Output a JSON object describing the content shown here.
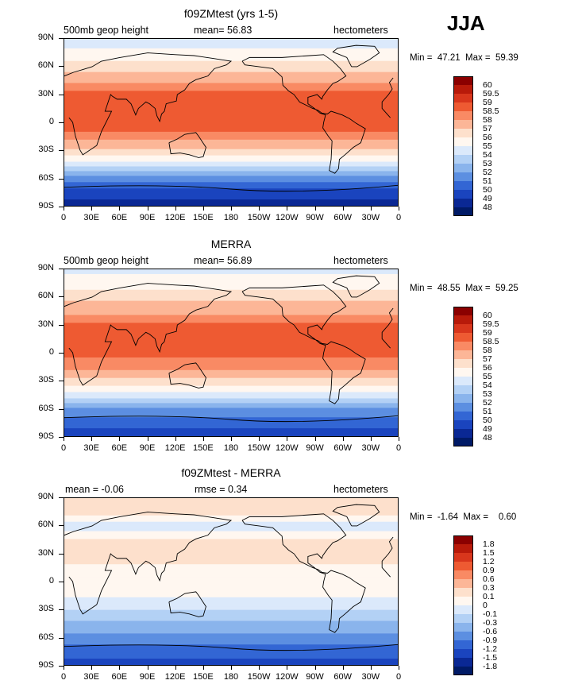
{
  "season": "JJA",
  "chart_data": [
    {
      "type": "heatmap",
      "title": "f09ZMtest (yrs 1-5)",
      "field_label": "500mb geop height",
      "stat_text": "mean=  56.83",
      "units": "hectometers",
      "min_text": "Min =  47.21",
      "max_text": "Max =  59.39",
      "min": 47.21,
      "max": 59.39,
      "mean": 56.83,
      "x_ticks": [
        "0",
        "30E",
        "60E",
        "90E",
        "120E",
        "150E",
        "180",
        "150W",
        "120W",
        "90W",
        "60W",
        "30W",
        "0"
      ],
      "y_ticks": [
        "90N",
        "60N",
        "30N",
        "0",
        "30S",
        "60S",
        "90S"
      ],
      "colorbar_levels": [
        "60",
        "59.5",
        "59",
        "58.5",
        "58",
        "57",
        "56",
        "55",
        "54",
        "53",
        "52",
        "51",
        "50",
        "49",
        "48"
      ],
      "colors": [
        "#8b0000",
        "#b81a0a",
        "#d8361c",
        "#ee5a32",
        "#f98a64",
        "#fcb697",
        "#fde0cc",
        "#fff7f0",
        "#dbe9fb",
        "#b3d1f5",
        "#8ab4ec",
        "#5c8fe1",
        "#3366d4",
        "#1a44be",
        "#0a2894",
        "#001a66"
      ],
      "profile": [
        {
          "lat": 90,
          "v": 54.5
        },
        {
          "lat": 75,
          "v": 55.2
        },
        {
          "lat": 60,
          "v": 56.6
        },
        {
          "lat": 45,
          "v": 57.8
        },
        {
          "lat": 30,
          "v": 58.8
        },
        {
          "lat": 15,
          "v": 58.8
        },
        {
          "lat": 0,
          "v": 58.7
        },
        {
          "lat": -15,
          "v": 58.4
        },
        {
          "lat": -30,
          "v": 56.9
        },
        {
          "lat": -45,
          "v": 54.5
        },
        {
          "lat": -60,
          "v": 51.5
        },
        {
          "lat": -75,
          "v": 49.5
        },
        {
          "lat": -90,
          "v": 48.5
        }
      ]
    },
    {
      "type": "heatmap",
      "title": "MERRA",
      "field_label": "500mb geop height",
      "stat_text": "mean=  56.89",
      "units": "hectometers",
      "min_text": "Min =  48.55",
      "max_text": "Max =  59.25",
      "min": 48.55,
      "max": 59.25,
      "mean": 56.89,
      "x_ticks": [
        "0",
        "30E",
        "60E",
        "90E",
        "120E",
        "150E",
        "180",
        "150W",
        "120W",
        "90W",
        "60W",
        "30W",
        "0"
      ],
      "y_ticks": [
        "90N",
        "60N",
        "30N",
        "0",
        "30S",
        "60S",
        "90S"
      ],
      "colorbar_levels": [
        "60",
        "59.5",
        "59",
        "58.5",
        "58",
        "57",
        "56",
        "55",
        "54",
        "53",
        "52",
        "51",
        "50",
        "49",
        "48"
      ],
      "colors": [
        "#8b0000",
        "#b81a0a",
        "#d8361c",
        "#ee5a32",
        "#f98a64",
        "#fcb697",
        "#fde0cc",
        "#fff7f0",
        "#dbe9fb",
        "#b3d1f5",
        "#8ab4ec",
        "#5c8fe1",
        "#3366d4",
        "#1a44be",
        "#0a2894",
        "#001a66"
      ],
      "profile": [
        {
          "lat": 90,
          "v": 54.8
        },
        {
          "lat": 75,
          "v": 55.4
        },
        {
          "lat": 60,
          "v": 56.7
        },
        {
          "lat": 45,
          "v": 57.7
        },
        {
          "lat": 30,
          "v": 58.6
        },
        {
          "lat": 15,
          "v": 58.7
        },
        {
          "lat": 0,
          "v": 58.6
        },
        {
          "lat": -15,
          "v": 58.3
        },
        {
          "lat": -30,
          "v": 56.8
        },
        {
          "lat": -45,
          "v": 54.6
        },
        {
          "lat": -60,
          "v": 52.0
        },
        {
          "lat": -75,
          "v": 50.3
        },
        {
          "lat": -90,
          "v": 49.6
        }
      ]
    },
    {
      "type": "heatmap",
      "title": "f09ZMtest - MERRA",
      "stat_text": "mean =   -0.06",
      "rmse_text": "rmse =    0.34",
      "units": "hectometers",
      "min_text": "Min =  -1.64",
      "max_text": "Max =    0.60",
      "min": -1.64,
      "max": 0.6,
      "mean": -0.06,
      "rmse": 0.34,
      "x_ticks": [
        "0",
        "30E",
        "60E",
        "90E",
        "120E",
        "150E",
        "180",
        "150W",
        "120W",
        "90W",
        "60W",
        "30W",
        "0"
      ],
      "y_ticks": [
        "90N",
        "60N",
        "30N",
        "0",
        "30S",
        "60S",
        "90S"
      ],
      "colorbar_levels": [
        "1.8",
        "1.5",
        "1.2",
        "0.9",
        "0.6",
        "0.3",
        "0.1",
        "0",
        "-0.1",
        "-0.3",
        "-0.6",
        "-0.9",
        "-1.2",
        "-1.5",
        "-1.8"
      ],
      "colors": [
        "#8b0000",
        "#b81a0a",
        "#d8361c",
        "#ee5a32",
        "#f98a64",
        "#fcb697",
        "#fde0cc",
        "#fff7f0",
        "#dbe9fb",
        "#b3d1f5",
        "#8ab4ec",
        "#5c8fe1",
        "#3366d4",
        "#1a44be",
        "#0a2894",
        "#001a66"
      ],
      "profile": [
        {
          "lat": 90,
          "v": 0.3
        },
        {
          "lat": 75,
          "v": 0.15
        },
        {
          "lat": 60,
          "v": -0.05
        },
        {
          "lat": 45,
          "v": 0.1
        },
        {
          "lat": 30,
          "v": 0.15
        },
        {
          "lat": 15,
          "v": 0.08
        },
        {
          "lat": 0,
          "v": 0.05
        },
        {
          "lat": -15,
          "v": 0.02
        },
        {
          "lat": -30,
          "v": -0.1
        },
        {
          "lat": -45,
          "v": -0.35
        },
        {
          "lat": -60,
          "v": -0.7
        },
        {
          "lat": -75,
          "v": -1.1
        },
        {
          "lat": -90,
          "v": -1.3
        }
      ]
    }
  ]
}
